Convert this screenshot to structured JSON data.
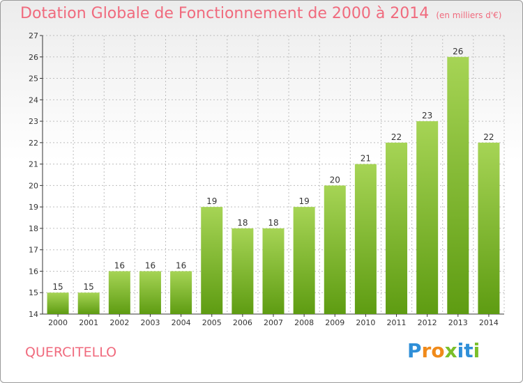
{
  "header": {
    "title": "Dotation Globale de Fonctionnement de 2000 à 2014",
    "subtitle": "(en milliers d'€)"
  },
  "footer": {
    "commune": "QUERCITELLO",
    "logo_text": "Proxiti"
  },
  "colors": {
    "title": "#f06a7d",
    "bar_top": "#a6d455",
    "bar_bottom": "#5e9c12",
    "axis": "#333333",
    "grid": "#bdbdbd"
  },
  "chart_data": {
    "type": "bar",
    "title": "Dotation Globale de Fonctionnement de 2000 à 2014",
    "subtitle": "(en milliers d'€)",
    "categories": [
      "2000",
      "2001",
      "2002",
      "2003",
      "2004",
      "2005",
      "2006",
      "2007",
      "2008",
      "2009",
      "2010",
      "2011",
      "2012",
      "2013",
      "2014"
    ],
    "values": [
      15,
      15,
      16,
      16,
      16,
      19,
      18,
      18,
      19,
      20,
      21,
      22,
      23,
      26,
      22
    ],
    "ylim": [
      14,
      27
    ],
    "yticks": [
      14,
      15,
      16,
      17,
      18,
      19,
      20,
      21,
      22,
      23,
      24,
      25,
      26,
      27
    ],
    "grid": true,
    "data_labels": true
  }
}
